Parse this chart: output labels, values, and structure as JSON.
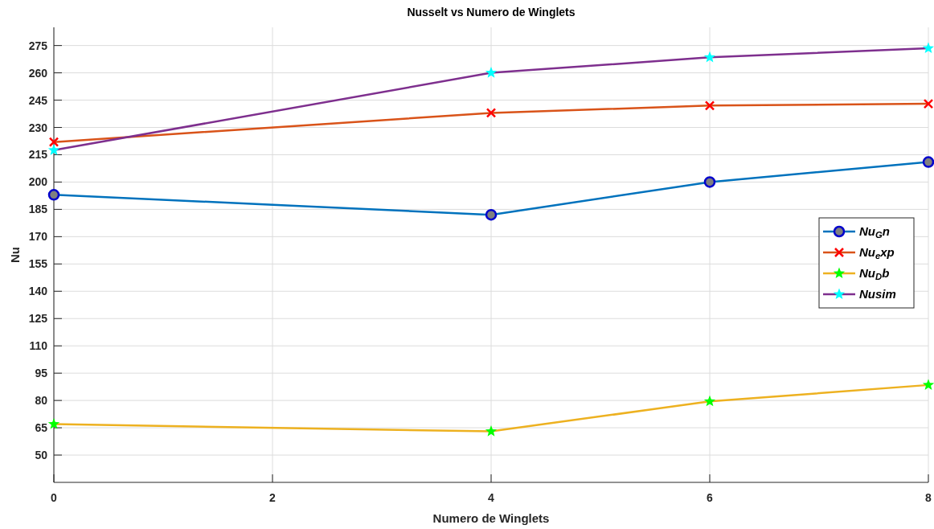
{
  "chart_data": {
    "type": "line",
    "title": "Nusselt vs Numero de Winglets",
    "xlabel": "Numero de Winglets",
    "ylabel": "Nu",
    "x": [
      0,
      4,
      6,
      8
    ],
    "xlim": [
      0,
      8
    ],
    "xticks": [
      0,
      2,
      4,
      6,
      8
    ],
    "ylim": [
      35,
      285
    ],
    "yticks": [
      50,
      65,
      80,
      95,
      110,
      125,
      140,
      155,
      170,
      185,
      200,
      215,
      230,
      245,
      260,
      275
    ],
    "grid": true,
    "legend": "right",
    "series": [
      {
        "name": "Nu$_{G}$n",
        "color": "#0072bd",
        "marker": "circle",
        "values": [
          193,
          182,
          200,
          211
        ]
      },
      {
        "name": "Nu$_{e}$xp",
        "color": "#d95319",
        "marker": "cross",
        "values": [
          222,
          238,
          242,
          243
        ]
      },
      {
        "name": "Nu$_{D}$b",
        "color": "#edb120",
        "marker": "star",
        "values": [
          67,
          63,
          79.5,
          88.5
        ]
      },
      {
        "name": "Nusim",
        "color": "#7e2f8e",
        "marker": "star",
        "values": [
          217.5,
          260,
          268.5,
          273.5
        ]
      }
    ]
  }
}
